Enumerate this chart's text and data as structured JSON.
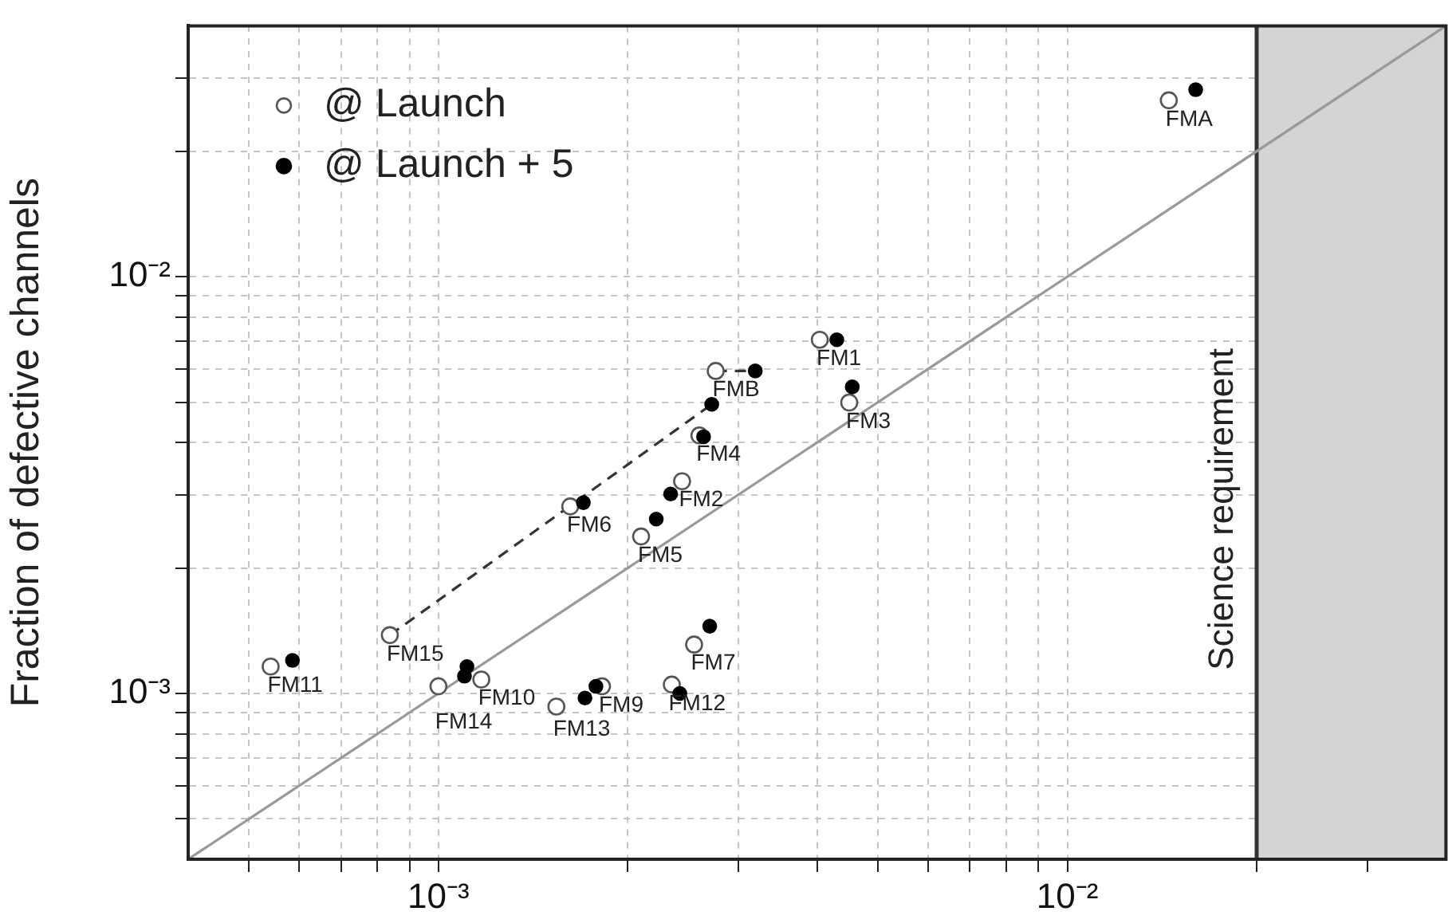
{
  "chart_data": {
    "type": "scatter",
    "ylabel": "Fraction of defective channels",
    "log": "xy",
    "grid": true,
    "legend": "top left",
    "xlim": [
      0.0004,
      0.04
    ],
    "ylim": [
      0.0004,
      0.04
    ],
    "xticks": [
      {
        "value": 0.0005,
        "label": null
      },
      {
        "value": 0.0006,
        "label": null
      },
      {
        "value": 0.0007,
        "label": null
      },
      {
        "value": 0.0008,
        "label": null
      },
      {
        "value": 0.0009,
        "label": null
      },
      {
        "value": 0.001,
        "label": "10⁻³"
      },
      {
        "value": 0.002,
        "label": null
      },
      {
        "value": 0.003,
        "label": null
      },
      {
        "value": 0.004,
        "label": null
      },
      {
        "value": 0.005,
        "label": null
      },
      {
        "value": 0.006,
        "label": null
      },
      {
        "value": 0.007,
        "label": null
      },
      {
        "value": 0.008,
        "label": null
      },
      {
        "value": 0.009,
        "label": null
      },
      {
        "value": 0.01,
        "label": "10⁻²"
      },
      {
        "value": 0.02,
        "label": null
      },
      {
        "value": 0.03,
        "label": null
      }
    ],
    "yticks": [
      {
        "value": 0.0005,
        "label": null
      },
      {
        "value": 0.0006,
        "label": null
      },
      {
        "value": 0.0007,
        "label": null
      },
      {
        "value": 0.0008,
        "label": null
      },
      {
        "value": 0.0009,
        "label": null
      },
      {
        "value": 0.001,
        "label": "10⁻³"
      },
      {
        "value": 0.002,
        "label": null
      },
      {
        "value": 0.003,
        "label": null
      },
      {
        "value": 0.004,
        "label": null
      },
      {
        "value": 0.005,
        "label": null
      },
      {
        "value": 0.006,
        "label": null
      },
      {
        "value": 0.007,
        "label": null
      },
      {
        "value": 0.008,
        "label": null
      },
      {
        "value": 0.009,
        "label": null
      },
      {
        "value": 0.01,
        "label": "10⁻²"
      },
      {
        "value": 0.02,
        "label": null
      },
      {
        "value": 0.03,
        "label": null
      }
    ],
    "series": [
      {
        "name": "@ Launch",
        "type": "scatter",
        "marker": "circle",
        "color": "#555555",
        "x": [
          0.00404,
          0.00244,
          0.0045,
          0.0026,
          0.0021,
          0.00162,
          0.00255,
          0.00182,
          0.00117,
          0.000541,
          0.00235,
          0.00154,
          0.001,
          0.000837,
          0.0145,
          0.00276
        ],
        "values": [
          0.00706,
          0.00323,
          0.00499,
          0.00416,
          0.00238,
          0.00281,
          0.00131,
          0.00104,
          0.00108,
          0.00116,
          0.00105,
          0.00093,
          0.00104,
          0.00138,
          0.0265,
          0.00594
        ]
      },
      {
        "name": "@ Launch + 5",
        "type": "scatter",
        "marker": "circle",
        "color": "#000000",
        "x": [
          0.0043,
          0.00234,
          0.00455,
          0.00264,
          0.00222,
          0.0017,
          0.0027,
          0.00178,
          0.00111,
          0.000586,
          0.00242,
          0.00171,
          0.0011,
          0.00272,
          0.016,
          0.00319
        ],
        "values": [
          0.00706,
          0.00301,
          0.00544,
          0.00413,
          0.00262,
          0.00287,
          0.00145,
          0.00104,
          0.00116,
          0.0012,
          0.001,
          0.000975,
          0.0011,
          0.00494,
          0.0281,
          0.00594
        ]
      },
      {
        "type": "line",
        "color": "#999999",
        "line_style": "solid",
        "x": [
          0.0004,
          0.04
        ],
        "values": [
          0.0004,
          0.04
        ]
      },
      {
        "type": "line",
        "color": "#333333",
        "line_style": "dashed",
        "x": [
          0.000837,
          0.00272
        ],
        "values": [
          0.00138,
          0.00494
        ]
      },
      {
        "type": "line",
        "color": "#333333",
        "line_style": "dashed",
        "x": [
          0.00276,
          0.00319
        ],
        "values": [
          0.00594,
          0.00594
        ]
      }
    ],
    "bands": [
      {
        "axis": "x",
        "from": 0.02,
        "to": 0.04,
        "color": "#d4d4d4"
      }
    ],
    "ref_lines": [
      {
        "axis": "x",
        "value": 0.02,
        "label": "Science requirement",
        "color": "#333333"
      }
    ],
    "annotations": [
      {
        "text": "FM1",
        "x": 0.00404,
        "y": 0.00706
      },
      {
        "text": "FM2",
        "x": 0.00244,
        "y": 0.00323
      },
      {
        "text": "FM3",
        "x": 0.0045,
        "y": 0.00499
      },
      {
        "text": "FM4",
        "x": 0.0026,
        "y": 0.00416
      },
      {
        "text": "FM5",
        "x": 0.0021,
        "y": 0.00238
      },
      {
        "text": "FM6",
        "x": 0.00162,
        "y": 0.00281
      },
      {
        "text": "FM7",
        "x": 0.00255,
        "y": 0.00131
      },
      {
        "text": "FM9",
        "x": 0.00182,
        "y": 0.00104
      },
      {
        "text": "FM10",
        "x": 0.00117,
        "y": 0.00108
      },
      {
        "text": "FM11",
        "x": 0.000541,
        "y": 0.00116
      },
      {
        "text": "FM12",
        "x": 0.00235,
        "y": 0.00105
      },
      {
        "text": "FM13",
        "x": 0.00154,
        "y": 0.00093
      },
      {
        "text": "FM14",
        "x": 0.001,
        "y": 0.00104
      },
      {
        "text": "FM15",
        "x": 0.000837,
        "y": 0.00138
      },
      {
        "text": "FMA",
        "x": 0.0145,
        "y": 0.0265
      },
      {
        "text": "FMB",
        "x": 0.00276,
        "y": 0.00594
      }
    ]
  }
}
